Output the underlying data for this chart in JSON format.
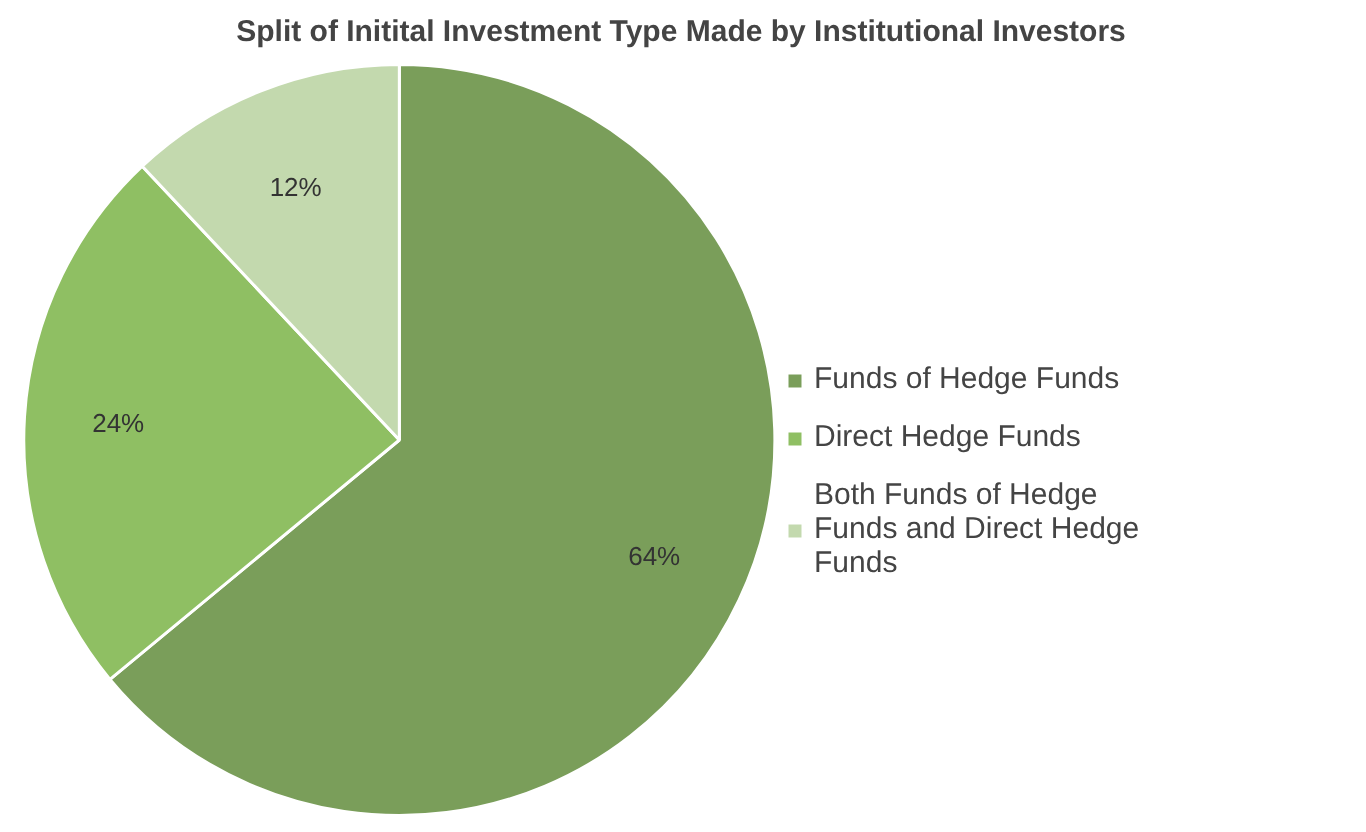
{
  "chart_data": {
    "type": "pie",
    "title": "Split of Initital Investment Type Made by Institutional Investors",
    "categories": [
      "Funds of Hedge Funds",
      "Direct Hedge Funds",
      "Both Funds of Hedge Funds and Direct Hedge Funds"
    ],
    "values": [
      64,
      24,
      12
    ],
    "colors": [
      "#7a9e5a",
      "#8fbf63",
      "#c3d9ae"
    ],
    "value_labels": [
      "64%",
      "24%",
      "12%"
    ],
    "legend": "right"
  }
}
